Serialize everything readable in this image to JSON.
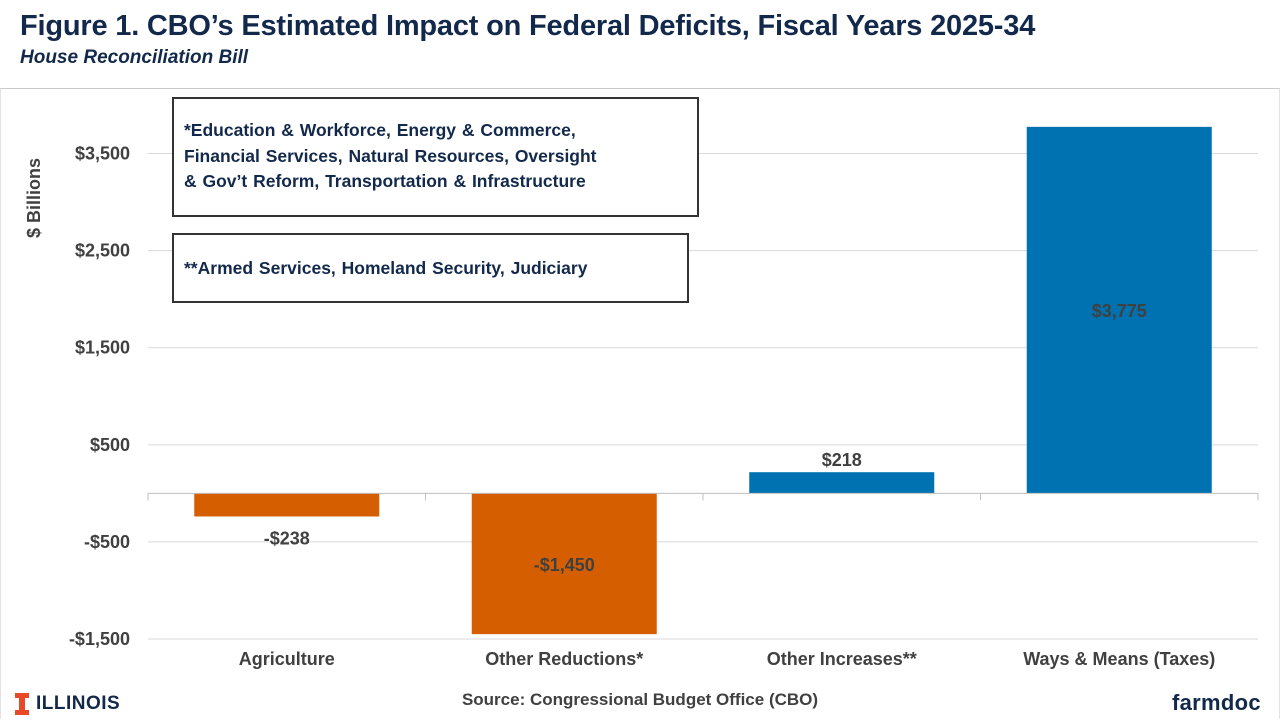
{
  "header": {
    "title": "Figure 1. CBO’s Estimated Impact on Federal Deficits, Fiscal Years 2025-34",
    "subtitle": "House Reconciliation Bill"
  },
  "notes": [
    {
      "lines": [
        "*Education & Workforce, Energy & Commerce,",
        "Financial Services, Natural Resources, Oversight",
        "& Gov’t Reform, Transportation & Infrastructure"
      ]
    },
    {
      "lines": [
        "**Armed Services, Homeland Security, Judiciary"
      ]
    }
  ],
  "footer": {
    "source": "Source: Congressional Budget Office (CBO)",
    "left_logo": "ILLINOIS",
    "right_logo": "farmdoc"
  },
  "colors": {
    "reduction": "#d55e00",
    "increase": "#0072b2",
    "title": "#13294b",
    "axis_text": "#404040",
    "illinois_orange": "#e84a27"
  },
  "chart_data": {
    "type": "bar",
    "ylabel": "$ Billions",
    "ylim": [
      -1500,
      4000
    ],
    "yticks": [
      -1500,
      -500,
      500,
      1500,
      2500,
      3500
    ],
    "ytick_labels": [
      "-$1,500",
      "-$500",
      "$500",
      "$1,500",
      "$2,500",
      "$3,500"
    ],
    "grid": true,
    "categories": [
      "Agriculture",
      "Other Reductions*",
      "Other Increases**",
      "Ways & Means (Taxes)"
    ],
    "values": [
      -238,
      -1450,
      218,
      3775
    ],
    "value_labels": [
      "-$238",
      "-$1,450",
      "$218",
      "$3,775"
    ],
    "bar_colors": [
      "#d55e00",
      "#d55e00",
      "#0072b2",
      "#0072b2"
    ]
  }
}
